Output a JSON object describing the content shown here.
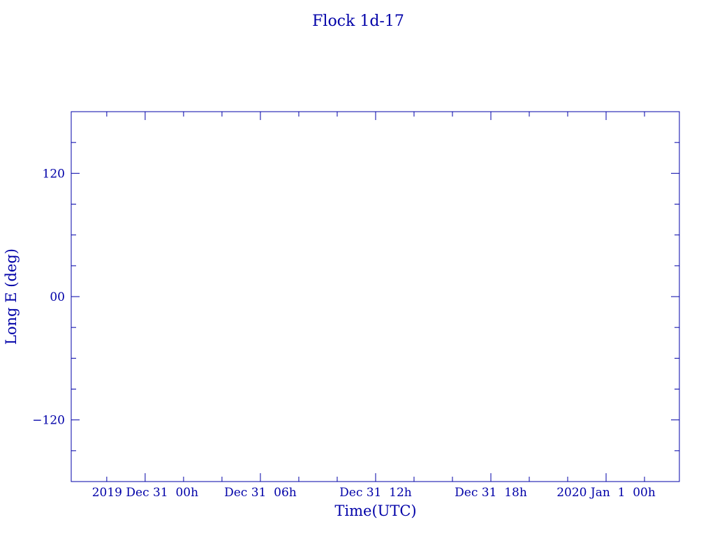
{
  "chart_data": {
    "type": "line",
    "title": "Flock 1d-17",
    "xlabel": "Time(UTC)",
    "ylabel": "Long E (deg)",
    "x_axis_type": "date",
    "xlim": [
      "2019-12-30T20:09",
      "2020-01-01T03:49"
    ],
    "ylim": [
      -180,
      180
    ],
    "x_major_ticks": [
      {
        "time": "2019-12-31T00:00",
        "label": "2019 Dec 31  00h"
      },
      {
        "time": "2019-12-31T06:00",
        "label": "Dec 31  06h"
      },
      {
        "time": "2019-12-31T12:00",
        "label": "Dec 31  12h"
      },
      {
        "time": "2019-12-31T18:00",
        "label": "Dec 31  18h"
      },
      {
        "time": "2020-01-01T00:00",
        "label": "2020 Jan  1  00h"
      }
    ],
    "x_minor_tick_hours": 2,
    "y_major_ticks": [
      {
        "value": 120,
        "label": "120"
      },
      {
        "value": 0,
        "label": "00"
      },
      {
        "value": -120,
        "label": "−120"
      }
    ],
    "y_minor_tick_step": 30,
    "grid": false,
    "series": [],
    "colors": {
      "axis": "#0000a8",
      "background": "#ffffff"
    }
  }
}
